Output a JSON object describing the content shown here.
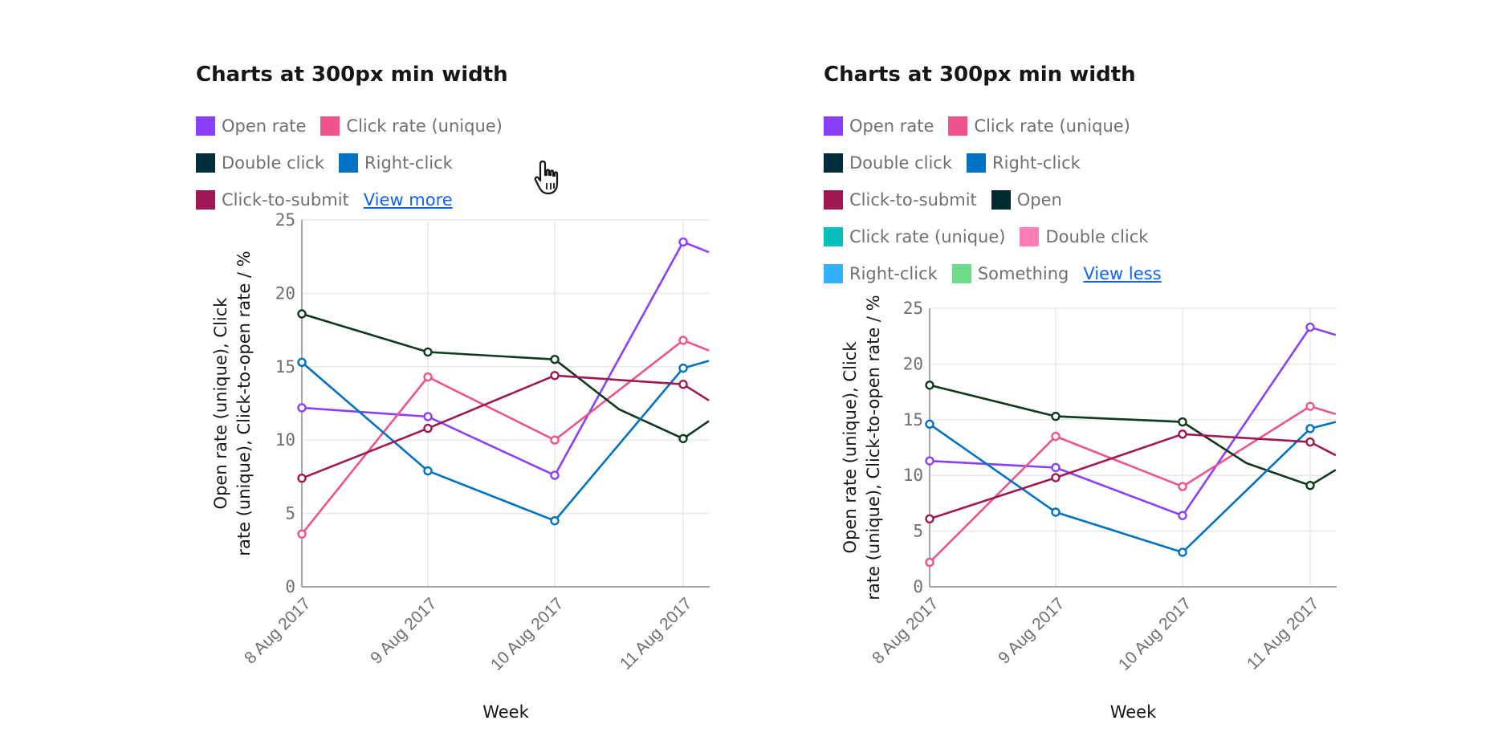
{
  "colors": {
    "open_rate": "#8a3ffc",
    "click_rate_unique": "#ee538b",
    "double_click": "#012749",
    "right_click": "#0072c3",
    "click_to_submit": "#9f1853",
    "open": "#012a2e",
    "click_rate_unique_2": "#08bdba",
    "double_click_2": "#ff7eb6",
    "right_click_2": "#33b1ff",
    "something": "#6fdc8c",
    "double_click_line": "#0e3a1a",
    "link": "#0f62fe"
  },
  "panels": [
    {
      "title": "Charts at 300px min width",
      "legend": [
        {
          "label": "Open rate",
          "color": "#8a3ffc"
        },
        {
          "label": "Click rate (unique)",
          "color": "#ee538b"
        },
        {
          "label": "Double click",
          "color": "#002d3a"
        },
        {
          "label": "Right-click",
          "color": "#0072c3"
        },
        {
          "label": "Click-to-submit",
          "color": "#9f1853"
        }
      ],
      "toggle_label": "View more",
      "cursor_icon": "hand-pointer-icon"
    },
    {
      "title": "Charts at 300px min width",
      "legend": [
        {
          "label": "Open rate",
          "color": "#8a3ffc"
        },
        {
          "label": "Click rate (unique)",
          "color": "#ee538b"
        },
        {
          "label": "Double click",
          "color": "#002d3a"
        },
        {
          "label": "Right-click",
          "color": "#0072c3"
        },
        {
          "label": "Click-to-submit",
          "color": "#9f1853"
        },
        {
          "label": "Open",
          "color": "#012a2e"
        },
        {
          "label": "Click rate (unique)",
          "color": "#08bdba"
        },
        {
          "label": "Double click",
          "color": "#ff7eb6"
        },
        {
          "label": "Right-click",
          "color": "#33b1ff"
        },
        {
          "label": "Something",
          "color": "#6fdc8c"
        }
      ],
      "toggle_label": "View less"
    }
  ],
  "chart_data": [
    {
      "type": "line",
      "x": [
        "8 Aug 2017",
        "9 Aug 2017",
        "10 Aug 2017",
        "11 Aug 2017"
      ],
      "xlabel": "Week",
      "ylabel": "Open rate (unique), Click rate (unique), Click-to-open rate / %",
      "ylim": [
        0,
        25
      ],
      "yticks": [
        0,
        5,
        10,
        15,
        20,
        25
      ],
      "grid": true,
      "series": [
        {
          "name": "Open rate",
          "color": "#8a3ffc",
          "values": [
            12.2,
            11.6,
            7.6,
            23.5
          ],
          "tail": [
            11.2,
            22.8
          ]
        },
        {
          "name": "Click rate (unique)",
          "color": "#ee538b",
          "values": [
            3.6,
            14.3,
            10.0,
            16.8
          ],
          "tail": [
            11.2,
            16.1
          ]
        },
        {
          "name": "Double click",
          "color": "#0e3a1a",
          "values": [
            18.6,
            16.0,
            15.5,
            10.1
          ],
          "extra": [
            [
              10.5,
              12.1
            ]
          ],
          "tail": [
            11.2,
            11.3
          ]
        },
        {
          "name": "Right-click",
          "color": "#0072c3",
          "values": [
            15.3,
            7.9,
            4.5,
            14.9
          ],
          "tail": [
            11.2,
            15.4
          ]
        },
        {
          "name": "Click-to-submit",
          "color": "#9f1853",
          "values": [
            7.4,
            10.8,
            14.4,
            13.8
          ],
          "tail": [
            11.2,
            12.7
          ]
        }
      ]
    },
    {
      "type": "line",
      "x": [
        "8 Aug 2017",
        "9 Aug 2017",
        "10 Aug 2017",
        "11 Aug 2017"
      ],
      "xlabel": "Week",
      "ylabel": "Open rate (unique), Click rate (unique), Click-to-open rate / %",
      "ylim": [
        0,
        25
      ],
      "yticks": [
        0,
        5,
        10,
        15,
        20,
        25
      ],
      "grid": true,
      "series": [
        {
          "name": "Open rate",
          "color": "#8a3ffc",
          "values": [
            11.3,
            10.7,
            6.4,
            23.3
          ],
          "tail": [
            11.2,
            22.6
          ]
        },
        {
          "name": "Click rate (unique)",
          "color": "#ee538b",
          "values": [
            2.2,
            13.5,
            9.0,
            16.2
          ],
          "tail": [
            11.2,
            15.5
          ]
        },
        {
          "name": "Double click",
          "color": "#0e3a1a",
          "values": [
            18.1,
            15.3,
            14.8,
            9.1
          ],
          "extra": [
            [
              10.5,
              11.1
            ]
          ],
          "tail": [
            11.2,
            10.5
          ]
        },
        {
          "name": "Right-click",
          "color": "#0072c3",
          "values": [
            14.6,
            6.7,
            3.1,
            14.2
          ],
          "tail": [
            11.2,
            14.8
          ]
        },
        {
          "name": "Click-to-submit",
          "color": "#9f1853",
          "values": [
            6.1,
            9.8,
            13.7,
            13.0
          ],
          "tail": [
            11.2,
            11.8
          ]
        }
      ]
    }
  ]
}
